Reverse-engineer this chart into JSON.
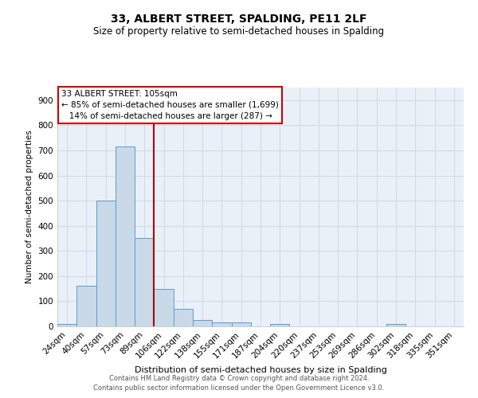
{
  "title": "33, ALBERT STREET, SPALDING, PE11 2LF",
  "subtitle": "Size of property relative to semi-detached houses in Spalding",
  "xlabel": "Distribution of semi-detached houses by size in Spalding",
  "ylabel": "Number of semi-detached properties",
  "categories": [
    "24sqm",
    "40sqm",
    "57sqm",
    "73sqm",
    "89sqm",
    "106sqm",
    "122sqm",
    "138sqm",
    "155sqm",
    "171sqm",
    "187sqm",
    "204sqm",
    "220sqm",
    "237sqm",
    "253sqm",
    "269sqm",
    "286sqm",
    "302sqm",
    "318sqm",
    "335sqm",
    "351sqm"
  ],
  "values": [
    10,
    160,
    500,
    715,
    350,
    148,
    70,
    25,
    15,
    15,
    0,
    8,
    0,
    0,
    0,
    0,
    0,
    8,
    0,
    0,
    0
  ],
  "bar_color": "#c9d9e8",
  "bar_edgecolor": "#5b9bd5",
  "property_line_color": "#aa0000",
  "annotation_line1": "33 ALBERT STREET: 105sqm",
  "annotation_line2": "← 85% of semi-detached houses are smaller (1,699)",
  "annotation_line3": "   14% of semi-detached houses are larger (287) →",
  "annotation_box_color": "#ffffff",
  "annotation_box_edgecolor": "#cc0000",
  "ylim": [
    0,
    950
  ],
  "yticks": [
    0,
    100,
    200,
    300,
    400,
    500,
    600,
    700,
    800,
    900
  ],
  "background_color": "#eaf0f8",
  "grid_color": "#d0dce8",
  "footer_line1": "Contains HM Land Registry data © Crown copyright and database right 2024.",
  "footer_line2": "Contains public sector information licensed under the Open Government Licence v3.0."
}
